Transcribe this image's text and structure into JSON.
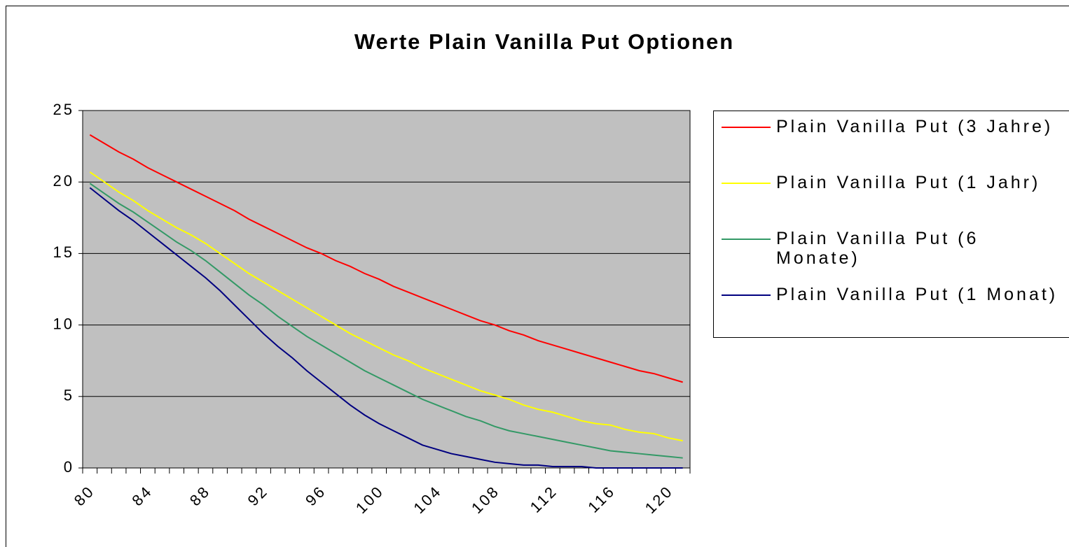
{
  "chart_data": {
    "type": "line",
    "title": "Werte Plain Vanilla Put Optionen",
    "categories": [
      80,
      null,
      null,
      null,
      84,
      null,
      null,
      null,
      88,
      null,
      null,
      null,
      92,
      null,
      null,
      null,
      96,
      null,
      null,
      null,
      100,
      null,
      null,
      null,
      104,
      null,
      null,
      null,
      108,
      null,
      null,
      null,
      112,
      null,
      null,
      null,
      116,
      null,
      null,
      null,
      120,
      null
    ],
    "series": [
      {
        "name": "Plain Vanilla Put (3 Jahre)",
        "color": "#ff0000",
        "values": [
          23.3,
          22.7,
          22.1,
          21.6,
          21.0,
          20.5,
          20.0,
          19.5,
          19.0,
          18.5,
          18.0,
          17.4,
          16.9,
          16.4,
          15.9,
          15.4,
          15.0,
          14.5,
          14.1,
          13.6,
          13.2,
          12.7,
          12.3,
          11.9,
          11.5,
          11.1,
          10.7,
          10.3,
          10.0,
          9.6,
          9.3,
          8.9,
          8.6,
          8.3,
          8.0,
          7.7,
          7.4,
          7.1,
          6.8,
          6.6,
          6.3,
          6.0
        ]
      },
      {
        "name": "Plain Vanilla Put (1 Jahr)",
        "color": "#ffff00",
        "values": [
          20.7,
          20.0,
          19.3,
          18.7,
          18.0,
          17.4,
          16.8,
          16.3,
          15.7,
          15.0,
          14.3,
          13.6,
          13.0,
          12.4,
          11.8,
          11.2,
          10.6,
          10.0,
          9.4,
          8.9,
          8.4,
          7.9,
          7.5,
          7.0,
          6.6,
          6.2,
          5.8,
          5.4,
          5.1,
          4.8,
          4.4,
          4.1,
          3.9,
          3.6,
          3.3,
          3.1,
          3.0,
          2.7,
          2.5,
          2.4,
          2.1,
          1.9
        ]
      },
      {
        "name": "Plain Vanilla Put (6 Monate)",
        "color": "#339966",
        "values": [
          19.9,
          19.2,
          18.5,
          17.9,
          17.2,
          16.5,
          15.8,
          15.2,
          14.5,
          13.7,
          12.9,
          12.1,
          11.4,
          10.6,
          9.9,
          9.2,
          8.6,
          8.0,
          7.4,
          6.8,
          6.3,
          5.8,
          5.3,
          4.8,
          4.4,
          4.0,
          3.6,
          3.3,
          2.9,
          2.6,
          2.4,
          2.2,
          2.0,
          1.8,
          1.6,
          1.4,
          1.2,
          1.1,
          1.0,
          0.9,
          0.8,
          0.7
        ]
      },
      {
        "name": "Plain Vanilla Put (1 Monat)",
        "color": "#000080",
        "values": [
          19.6,
          18.8,
          18.0,
          17.3,
          16.5,
          15.7,
          14.9,
          14.1,
          13.3,
          12.4,
          11.4,
          10.4,
          9.4,
          8.5,
          7.7,
          6.8,
          6.0,
          5.2,
          4.4,
          3.7,
          3.1,
          2.6,
          2.1,
          1.6,
          1.3,
          1.0,
          0.8,
          0.6,
          0.4,
          0.3,
          0.2,
          0.2,
          0.1,
          0.1,
          0.1,
          0,
          0,
          0,
          0,
          0,
          0,
          0
        ]
      }
    ],
    "ylim": [
      0,
      25
    ],
    "yticks": [
      0,
      5,
      10,
      15,
      20,
      25
    ],
    "grid": true,
    "plot_background": "#c0c0c0",
    "legend": "right"
  }
}
